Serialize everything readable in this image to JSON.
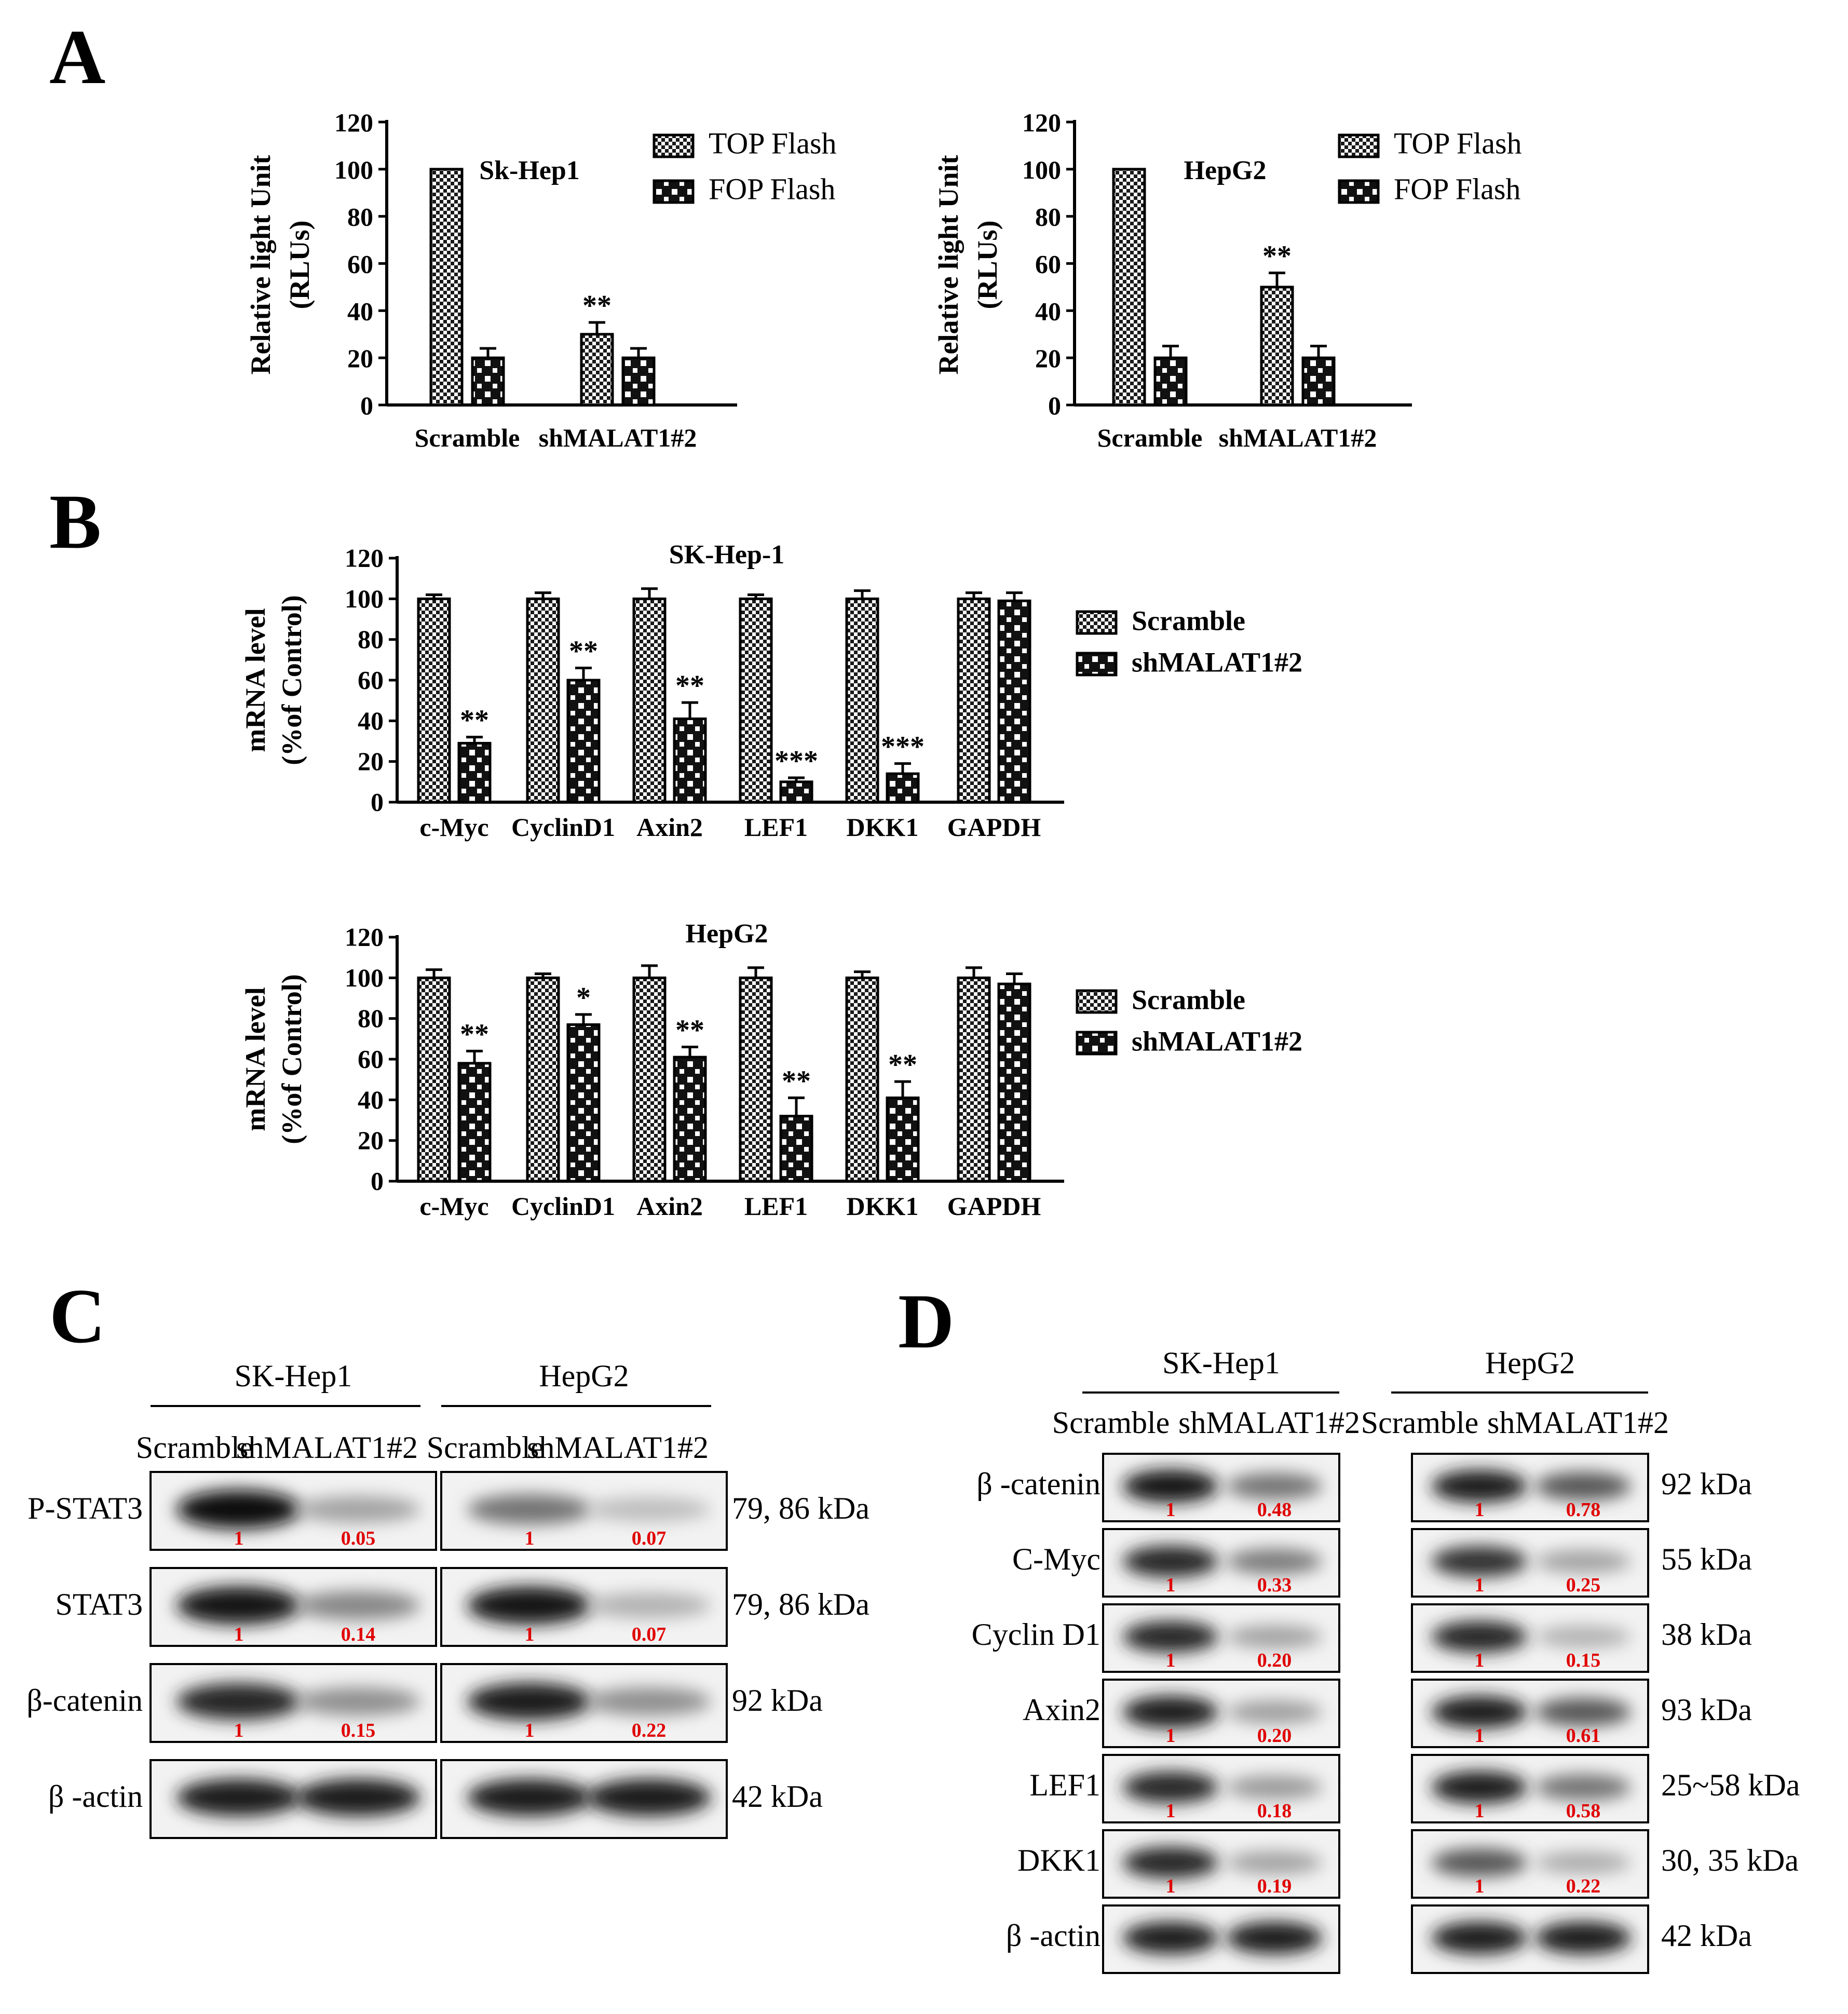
{
  "panels": {
    "a": "A",
    "b": "B",
    "c": "C",
    "d": "D"
  },
  "colors": {
    "bar_fill": "#ffffff",
    "bar_stroke": "#000000",
    "quant_text": "#e00000"
  },
  "chart_data": [
    {
      "type": "bar",
      "panel": "A",
      "title": "Sk-Hep1",
      "categories": [
        "Scramble",
        "shMALAT1#2"
      ],
      "series": [
        {
          "name": "TOP Flash",
          "pattern": "checker",
          "values": [
            100,
            30
          ],
          "errors": [
            0,
            5
          ],
          "sig": [
            "",
            "**"
          ]
        },
        {
          "name": "FOP Flash",
          "pattern": "lattice",
          "values": [
            20,
            20
          ],
          "errors": [
            4,
            4
          ],
          "sig": [
            "",
            ""
          ]
        }
      ],
      "ylabel_lines": [
        "Relative light Unit",
        "(RLUs)"
      ],
      "ylim": [
        0,
        120
      ],
      "yticks": [
        "0",
        "20",
        "40",
        "60",
        "80",
        "100",
        "120"
      ],
      "legend_position": "top-right"
    },
    {
      "type": "bar",
      "panel": "A",
      "title": "HepG2",
      "categories": [
        "Scramble",
        "shMALAT1#2"
      ],
      "series": [
        {
          "name": "TOP Flash",
          "pattern": "checker",
          "values": [
            100,
            50
          ],
          "errors": [
            0,
            6
          ],
          "sig": [
            "",
            "**"
          ]
        },
        {
          "name": "FOP Flash",
          "pattern": "lattice",
          "values": [
            20,
            20
          ],
          "errors": [
            5,
            5
          ],
          "sig": [
            "",
            ""
          ]
        }
      ],
      "ylabel_lines": [
        "Relative light Unit",
        "(RLUs)"
      ],
      "ylim": [
        0,
        120
      ],
      "yticks": [
        "0",
        "20",
        "40",
        "60",
        "80",
        "100",
        "120"
      ],
      "legend_position": "top-right"
    },
    {
      "type": "bar",
      "panel": "B",
      "title": "SK-Hep-1",
      "categories": [
        "c-Myc",
        "CyclinD1",
        "Axin2",
        "LEF1",
        "DKK1",
        "GAPDH"
      ],
      "series": [
        {
          "name": "Scramble",
          "pattern": "checker",
          "values": [
            100,
            100,
            100,
            100,
            100,
            100
          ],
          "errors": [
            2,
            3,
            5,
            2,
            4,
            3
          ],
          "sig": [
            "",
            "",
            "",
            "",
            "",
            ""
          ]
        },
        {
          "name": "shMALAT1#2",
          "pattern": "lattice",
          "values": [
            29,
            60,
            41,
            10,
            14,
            99
          ],
          "errors": [
            3,
            6,
            8,
            2,
            5,
            4
          ],
          "sig": [
            "**",
            "**",
            "**",
            "***",
            "***",
            ""
          ]
        }
      ],
      "ylabel_lines": [
        "mRNA level",
        "(%of Control)"
      ],
      "ylim": [
        0,
        120
      ],
      "yticks": [
        "0",
        "20",
        "40",
        "60",
        "80",
        "100",
        "120"
      ],
      "legend_position": "right"
    },
    {
      "type": "bar",
      "panel": "B",
      "title": "HepG2",
      "categories": [
        "c-Myc",
        "CyclinD1",
        "Axin2",
        "LEF1",
        "DKK1",
        "GAPDH"
      ],
      "series": [
        {
          "name": "Scramble",
          "pattern": "checker",
          "values": [
            100,
            100,
            100,
            100,
            100,
            100
          ],
          "errors": [
            4,
            2,
            6,
            5,
            3,
            5
          ],
          "sig": [
            "",
            "",
            "",
            "",
            "",
            ""
          ]
        },
        {
          "name": "shMALAT1#2",
          "pattern": "lattice",
          "values": [
            58,
            77,
            61,
            32,
            41,
            97
          ],
          "errors": [
            6,
            5,
            5,
            9,
            8,
            5
          ],
          "sig": [
            "**",
            "*",
            "**",
            "**",
            "**",
            ""
          ]
        }
      ],
      "ylabel_lines": [
        "mRNA level",
        "(%of Control)"
      ],
      "ylim": [
        0,
        120
      ],
      "yticks": [
        "0",
        "20",
        "40",
        "60",
        "80",
        "100",
        "120"
      ],
      "legend_position": "right"
    }
  ],
  "western_c": {
    "groups": [
      {
        "cell": "SK-Hep1",
        "lanes": [
          "Scramble",
          "shMALAT1#2"
        ]
      },
      {
        "cell": "HepG2",
        "lanes": [
          "Scramble",
          "shMALAT1#2"
        ]
      }
    ],
    "rows": [
      {
        "protein": "P-STAT3",
        "size": "79, 86 kDa",
        "quant": [
          [
            "1",
            "0.05"
          ],
          [
            "1",
            "0.07"
          ]
        ],
        "intensity": [
          [
            1.0,
            0.2
          ],
          [
            0.45,
            0.06
          ]
        ]
      },
      {
        "protein": "STAT3",
        "size": "79, 86 kDa",
        "quant": [
          [
            "1",
            "0.14"
          ],
          [
            "1",
            "0.07"
          ]
        ],
        "intensity": [
          [
            0.95,
            0.35
          ],
          [
            0.95,
            0.12
          ]
        ]
      },
      {
        "protein": "β-catenin",
        "size": "92 kDa",
        "quant": [
          [
            "1",
            "0.15"
          ],
          [
            "1",
            "0.22"
          ]
        ],
        "intensity": [
          [
            0.85,
            0.3
          ],
          [
            0.9,
            0.3
          ]
        ]
      },
      {
        "protein": "β -actin",
        "size": "42 kDa",
        "quant": [],
        "intensity": [
          [
            0.9,
            0.9
          ],
          [
            0.9,
            0.9
          ]
        ]
      }
    ]
  },
  "western_d": {
    "groups": [
      {
        "cell": "SK-Hep1",
        "lanes": [
          "Scramble",
          "shMALAT1#2"
        ]
      },
      {
        "cell": "HepG2",
        "lanes": [
          "Scramble",
          "shMALAT1#2"
        ]
      }
    ],
    "rows": [
      {
        "protein": "β -catenin",
        "size": "92 kDa",
        "quant": [
          [
            "1",
            "0.48"
          ],
          [
            "1",
            "0.78"
          ]
        ],
        "intensity": [
          [
            0.95,
            0.45
          ],
          [
            0.9,
            0.6
          ]
        ]
      },
      {
        "protein": "C-Myc",
        "size": "55 kDa",
        "quant": [
          [
            "1",
            "0.33"
          ],
          [
            "1",
            "0.25"
          ]
        ],
        "intensity": [
          [
            0.85,
            0.4
          ],
          [
            0.8,
            0.2
          ]
        ]
      },
      {
        "protein": "Cyclin D1",
        "size": "38 kDa",
        "quant": [
          [
            "1",
            "0.20"
          ],
          [
            "1",
            "0.15"
          ]
        ],
        "intensity": [
          [
            0.85,
            0.2
          ],
          [
            0.85,
            0.12
          ]
        ]
      },
      {
        "protein": "Axin2",
        "size": "93 kDa",
        "quant": [
          [
            "1",
            "0.20"
          ],
          [
            "1",
            "0.61"
          ]
        ],
        "intensity": [
          [
            0.9,
            0.22
          ],
          [
            0.9,
            0.6
          ]
        ]
      },
      {
        "protein": "LEF1",
        "size": "25~58 kDa",
        "quant": [
          [
            "1",
            "0.18"
          ],
          [
            "1",
            "0.58"
          ]
        ],
        "intensity": [
          [
            0.85,
            0.25
          ],
          [
            0.9,
            0.45
          ]
        ]
      },
      {
        "protein": "DKK1",
        "size": "30, 35 kDa",
        "quant": [
          [
            "1",
            "0.19"
          ],
          [
            "1",
            "0.22"
          ]
        ],
        "intensity": [
          [
            0.85,
            0.2
          ],
          [
            0.6,
            0.15
          ]
        ]
      },
      {
        "protein": "β -actin",
        "size": "42 kDa",
        "quant": [],
        "intensity": [
          [
            0.9,
            0.9
          ],
          [
            0.9,
            0.9
          ]
        ]
      }
    ]
  }
}
